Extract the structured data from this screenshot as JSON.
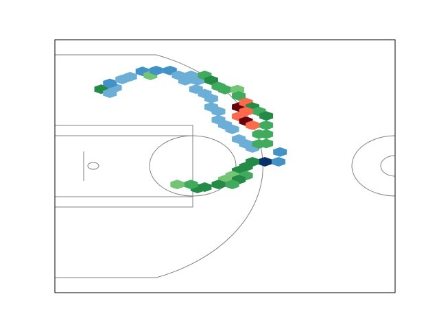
{
  "chart_data": {
    "type": "hexbin",
    "xlim": [
      0,
      47
    ],
    "ylim": [
      -3.5,
      53.3
    ],
    "x": [
      6.4,
      7.6,
      8.3,
      7.6,
      9.3,
      10.4,
      12.1,
      13.2,
      14.0,
      15.9,
      17.1,
      18.8,
      18.0,
      19.7,
      20.7,
      21.6,
      19.5,
      20.7,
      22.6,
      23.5,
      25.2,
      25.4,
      21.6,
      21.6,
      22.6,
      25.4,
      26.4,
      27.3,
      28.2,
      29.2,
      25.4,
      26.4,
      26.4,
      27.3,
      29.2,
      22.6,
      23.5,
      24.5,
      28.2,
      29.2,
      25.4,
      26.4,
      27.3,
      28.2,
      29.2,
      31.1,
      29.0,
      30.9,
      27.3,
      26.4,
      25.4,
      26.4,
      24.5,
      25.4,
      23.5,
      24.5,
      22.6,
      20.7,
      19.7,
      18.8,
      16.9
    ],
    "y": [
      42.2,
      41.3,
      42.5,
      43.5,
      44.4,
      45.0,
      46.2,
      45.3,
      46.4,
      46.4,
      45.3,
      45.3,
      44.1,
      44.1,
      45.3,
      44.2,
      42.2,
      41.2,
      42.8,
      42.1,
      42.1,
      40.7,
      40.1,
      38.2,
      37.2,
      38.2,
      39.2,
      38.2,
      37.2,
      36.2,
      36.1,
      37.2,
      35.0,
      34.1,
      34.1,
      35.3,
      34.2,
      33.2,
      32.1,
      32.1,
      31.0,
      29.9,
      29.0,
      29.9,
      30.0,
      28.1,
      25.9,
      25.9,
      25.9,
      24.8,
      23.9,
      22.8,
      22.8,
      21.9,
      21.9,
      20.8,
      20.8,
      20.2,
      19.9,
      20.8,
      20.8
    ],
    "colors": [
      "#238b45",
      "#6baed6",
      "#6baed6",
      "#4292c6",
      "#6baed6",
      "#6baed6",
      "#4292c6",
      "#74c476",
      "#4292c6",
      "#4292c6",
      "#6baed6",
      "#6baed6",
      "#6baed6",
      "#6baed6",
      "#41ab5d",
      "#238b45",
      "#6baed6",
      "#6baed6",
      "#41ab5d",
      "#41ab5d",
      "#74c476",
      "#41ab5d",
      "#6baed6",
      "#6baed6",
      "#6baed6",
      "#67000d",
      "#fb6a4a",
      "#238b45",
      "#41ab5d",
      "#238b45",
      "#fb6a4a",
      "#fb6a4a",
      "#67000d",
      "#fb6a4a",
      "#41ab5d",
      "#6baed6",
      "#6baed6",
      "#6baed6",
      "#41ab5d",
      "#41ab5d",
      "#6baed6",
      "#6baed6",
      "#6baed6",
      "#41ab5d",
      "#41ab5d",
      "#4292c6",
      "#08306b",
      "#4292c6",
      "#238b45",
      "#238b45",
      "#238b45",
      "#41ab5d",
      "#74c476",
      "#238b45",
      "#74c476",
      "#41ab5d",
      "#238b45",
      "#238b45",
      "#238b45",
      "#41ab5d",
      "#74c476"
    ]
  }
}
